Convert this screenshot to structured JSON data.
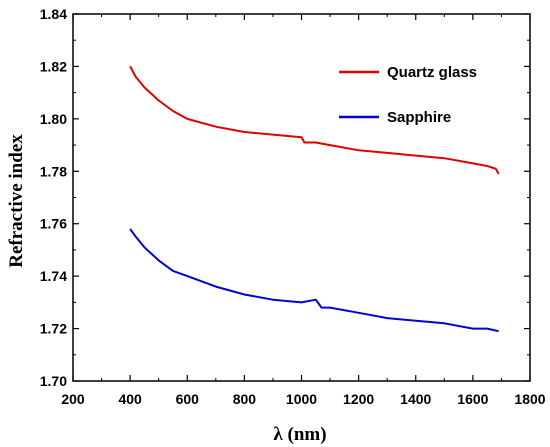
{
  "chart_data": {
    "type": "line",
    "title": "",
    "xlabel": "λ (nm)",
    "ylabel": "Refractive index",
    "xlim": [
      200,
      1800
    ],
    "ylim": [
      1.7,
      1.84
    ],
    "x_ticks": [
      "200",
      "400",
      "600",
      "800",
      "1000",
      "1200",
      "1400",
      "1600",
      "1800"
    ],
    "y_ticks": [
      "1.70",
      "1.72",
      "1.74",
      "1.76",
      "1.78",
      "1.80",
      "1.82",
      "1.84"
    ],
    "grid": false,
    "legend_position": "top-right",
    "series": [
      {
        "name": "Quartz glass",
        "color": "#e00000",
        "x": [
          400,
          420,
          450,
          500,
          550,
          600,
          700,
          800,
          900,
          1000,
          1010,
          1050,
          1100,
          1200,
          1300,
          1400,
          1500,
          1600,
          1650,
          1680,
          1690
        ],
        "y": [
          1.82,
          1.816,
          1.812,
          1.807,
          1.803,
          1.8,
          1.797,
          1.795,
          1.794,
          1.793,
          1.791,
          1.791,
          1.79,
          1.788,
          1.787,
          1.786,
          1.785,
          1.783,
          1.782,
          1.781,
          1.779
        ]
      },
      {
        "name": "Sapphire",
        "color": "#0000d8",
        "x": [
          400,
          420,
          450,
          500,
          550,
          600,
          700,
          800,
          900,
          1000,
          1050,
          1070,
          1100,
          1200,
          1300,
          1400,
          1500,
          1600,
          1650,
          1690
        ],
        "y": [
          1.758,
          1.755,
          1.751,
          1.746,
          1.742,
          1.74,
          1.736,
          1.733,
          1.731,
          1.73,
          1.731,
          1.728,
          1.728,
          1.726,
          1.724,
          1.723,
          1.722,
          1.72,
          1.72,
          1.719
        ]
      }
    ]
  }
}
